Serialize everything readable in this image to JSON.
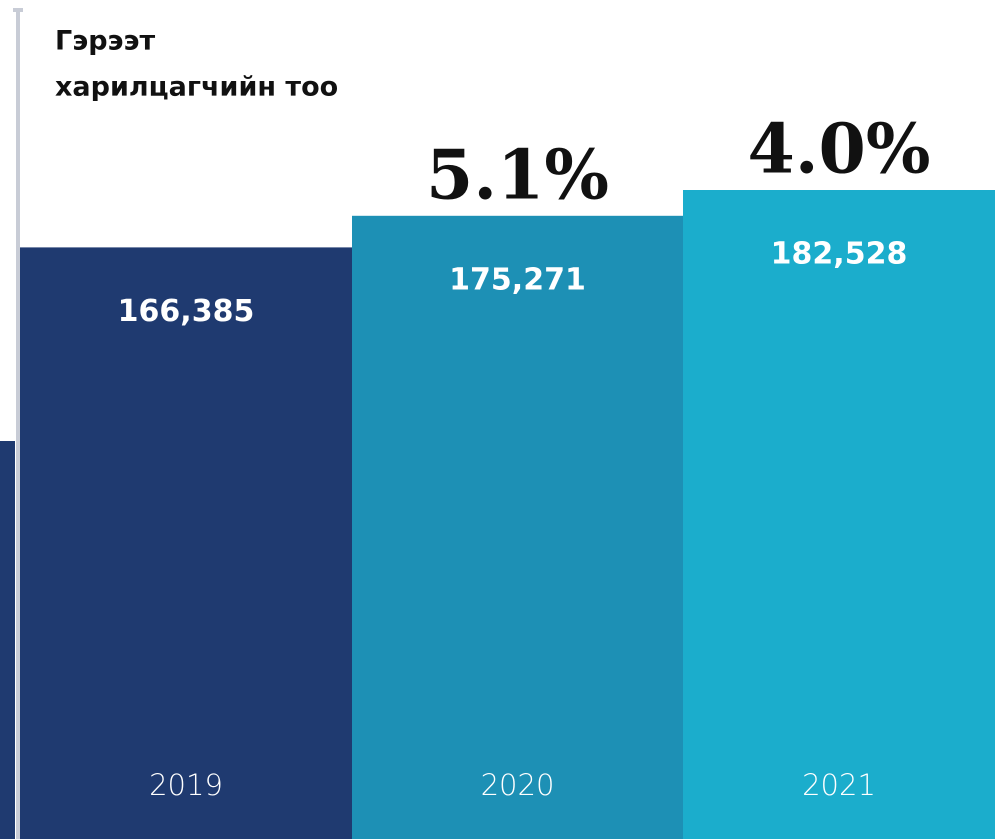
{
  "chart_data": {
    "type": "bar",
    "title": [
      "Гэрээт",
      "харилцагчийн тоо"
    ],
    "categories": [
      "2019",
      "2020",
      "2021"
    ],
    "values": [
      166385,
      175271,
      182528
    ],
    "value_labels": [
      "166,385",
      "175,271",
      "182,528"
    ],
    "colors": [
      "#1f3a70",
      "#1d90b5",
      "#1badcc"
    ],
    "annotations": [
      "5.1%",
      "4.0%"
    ]
  }
}
